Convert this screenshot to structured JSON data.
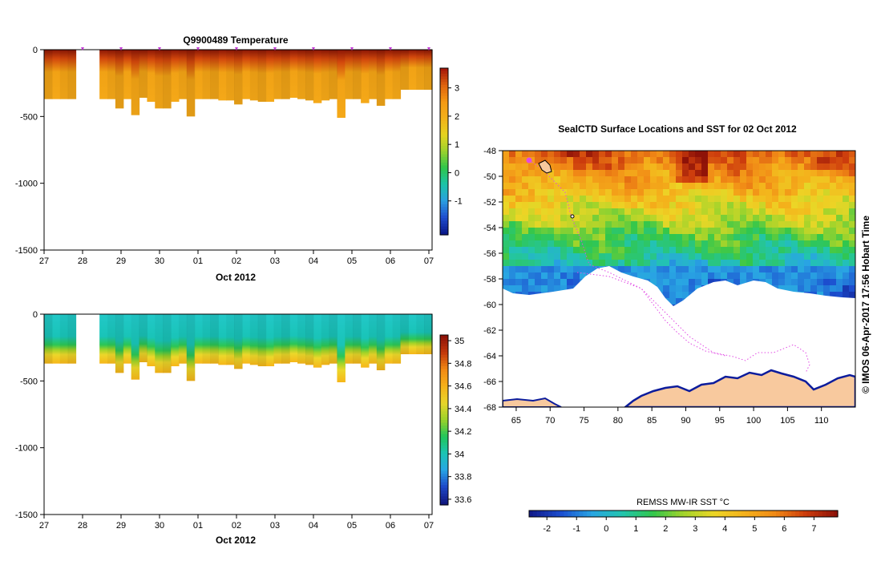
{
  "colors": {
    "temp_scale": [
      "#0b1a8c",
      "#1f4fd0",
      "#2aa0e0",
      "#1bc4a8",
      "#2ec64b",
      "#9bd22d",
      "#e6d31f",
      "#f2b21a",
      "#f59a14",
      "#e0650f",
      "#a81a0a"
    ],
    "sal_scale": [
      "#111880",
      "#1d48c8",
      "#27a6e6",
      "#1cc4b4",
      "#22c65a",
      "#9ad22a",
      "#e8d52a",
      "#f5b21a",
      "#f28a14",
      "#c43a0b",
      "#8e1208"
    ],
    "sst_scale": [
      "#111a8a",
      "#1c4fd0",
      "#29a5e3",
      "#22c5ae",
      "#31c64c",
      "#a2d42b",
      "#ecd626",
      "#f4b11b",
      "#f18a16",
      "#cd3d0d",
      "#8e1208"
    ],
    "land": "#f8c99e",
    "coast": "#0c1c9c",
    "track": "#e14be4"
  },
  "chart_data": [
    {
      "type": "heatmap",
      "title": "Q9900489  Temperature",
      "xlabel": "Oct 2012",
      "x_ticks": [
        "27",
        "28",
        "29",
        "30",
        "01",
        "02",
        "03",
        "04",
        "05",
        "06",
        "07"
      ],
      "y_ticks": [
        "0",
        "-500",
        "-1000",
        "-1500"
      ],
      "ylim": [
        -1500,
        0
      ],
      "colorbar_ticks": [
        "3",
        "2",
        "1",
        "0",
        "-1"
      ],
      "colorbar_range": [
        -2.2,
        3.7
      ],
      "profile_depths": [
        370,
        370,
        370,
        370,
        0,
        0,
        0,
        370,
        370,
        440,
        370,
        490,
        360,
        390,
        440,
        440,
        390,
        370,
        500,
        370,
        370,
        370,
        380,
        380,
        410,
        370,
        380,
        390,
        390,
        370,
        370,
        360,
        370,
        380,
        400,
        380,
        370,
        510,
        370,
        370,
        400,
        370,
        420,
        370,
        370,
        300,
        300,
        300,
        300
      ]
    },
    {
      "type": "heatmap",
      "title": "",
      "xlabel": "Oct 2012",
      "x_ticks": [
        "27",
        "28",
        "29",
        "30",
        "01",
        "02",
        "03",
        "04",
        "05",
        "06",
        "07"
      ],
      "y_ticks": [
        "0",
        "-500",
        "-1000",
        "-1500"
      ],
      "ylim": [
        -1500,
        0
      ],
      "colorbar_ticks": [
        "35",
        "34.8",
        "34.6",
        "34.4",
        "34.2",
        "34",
        "33.8",
        "33.6"
      ],
      "colorbar_range": [
        33.55,
        35.05
      ]
    },
    {
      "type": "heatmap",
      "title": "SealCTD Surface Locations and SST for 02 Oct 2012",
      "xlabel": "",
      "x_ticks": [
        "65",
        "70",
        "75",
        "80",
        "85",
        "90",
        "95",
        "100",
        "105",
        "110"
      ],
      "y_ticks": [
        "-48",
        "-50",
        "-52",
        "-54",
        "-56",
        "-58",
        "-60",
        "-62",
        "-64",
        "-66",
        "-68"
      ],
      "xlim": [
        63,
        115
      ],
      "ylim": [
        -68,
        -48
      ],
      "colorbar_label": "REMSS MW-IR SST °C",
      "colorbar_ticks": [
        "-2",
        "-1",
        "0",
        "1",
        "2",
        "3",
        "4",
        "5",
        "6",
        "7"
      ],
      "colorbar_range": [
        -2.6,
        7.8
      ]
    }
  ],
  "credit": "© IMOS 06-Apr-2017 17:56 Hobart Time"
}
